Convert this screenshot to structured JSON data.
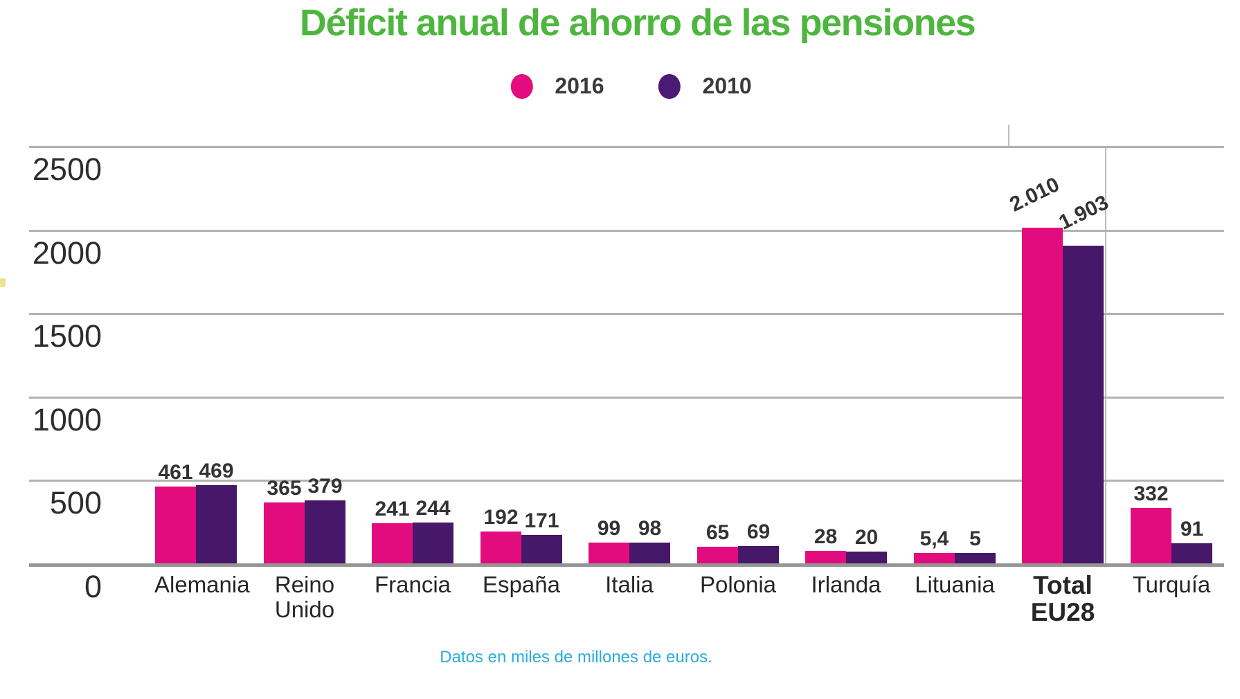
{
  "title": "Déficit anual de ahorro de las pensiones",
  "title_color": "#4eb63f",
  "legend": [
    {
      "label": "2016",
      "color": "#e30c7e"
    },
    {
      "label": "2010",
      "color": "#4b1a72"
    }
  ],
  "footer": {
    "text": "Datos en miles de millones de euros.",
    "color": "#2bacdf"
  },
  "chart_data": {
    "type": "bar",
    "title": "Déficit anual de ahorro de las pensiones",
    "categories": [
      "Alemania",
      "Reino Unido",
      "Francia",
      "España",
      "Italia",
      "Polonia",
      "Irlanda",
      "Lituania",
      "Total EU28",
      "Turquía"
    ],
    "series": [
      {
        "name": "2016",
        "color": "#e30c7e",
        "values": [
          461,
          365,
          241,
          192,
          99,
          65,
          28,
          5.4,
          2010,
          332
        ],
        "labels": [
          "461",
          "365",
          "241",
          "192",
          "99",
          "65",
          "28",
          "5,4",
          "2.010",
          "332"
        ]
      },
      {
        "name": "2010",
        "color": "#471769",
        "values": [
          469,
          379,
          244,
          171,
          98,
          69,
          20,
          5,
          1903,
          91
        ],
        "labels": [
          "469",
          "379",
          "244",
          "171",
          "98",
          "69",
          "20",
          "5",
          "1.903",
          "91"
        ]
      }
    ],
    "yticks": [
      2500,
      2000,
      1500,
      1000,
      500,
      0
    ],
    "ylim": [
      0,
      2500
    ],
    "grid": true,
    "legend_position": "top",
    "xlabel": "",
    "ylabel": "",
    "unit_note": "Datos en miles de millones de euros."
  }
}
